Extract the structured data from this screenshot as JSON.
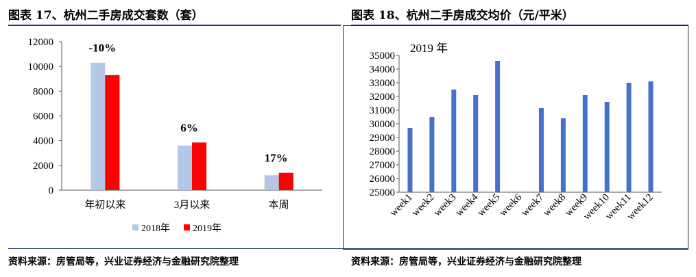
{
  "left": {
    "title": "图表 17、杭州二手房成交套数（套）",
    "source": "资料来源：房管局等，兴业证券经济与金融研究院整理"
  },
  "right": {
    "title": "图表 18、杭州二手房成交均价（元/平米）",
    "source": "资料来源：房管局等，兴业证券经济与金融研究院整理"
  },
  "colors": {
    "series2018": "#b4c7e7",
    "series2019": "#ff0000",
    "bars_right": "#4472c4",
    "rule": "#1f3b73"
  },
  "chart_data": [
    {
      "type": "bar",
      "categories": [
        "年初以来",
        "3月以来",
        "本周"
      ],
      "series": [
        {
          "name": "2018年",
          "values": [
            10300,
            3600,
            1200
          ]
        },
        {
          "name": "2019年",
          "values": [
            9300,
            3850,
            1400
          ]
        }
      ],
      "annotations": [
        "-10%",
        "6%",
        "17%"
      ],
      "yticks": [
        0,
        2000,
        4000,
        6000,
        8000,
        10000,
        12000
      ],
      "ylim": [
        0,
        12000
      ],
      "legend_position": "bottom",
      "grid": false
    },
    {
      "type": "bar",
      "title": "2019 年",
      "categories": [
        "week1",
        "week2",
        "week3",
        "week4",
        "week5",
        "week6",
        "week7",
        "week8",
        "week9",
        "week10",
        "week11",
        "week12"
      ],
      "values": [
        29700,
        30500,
        32500,
        32100,
        34600,
        null,
        31150,
        30400,
        32100,
        31600,
        33000,
        33100
      ],
      "yticks": [
        25000,
        26000,
        27000,
        28000,
        29000,
        30000,
        31000,
        32000,
        33000,
        34000,
        35000
      ],
      "ylim": [
        25000,
        35000
      ],
      "grid": false
    }
  ]
}
